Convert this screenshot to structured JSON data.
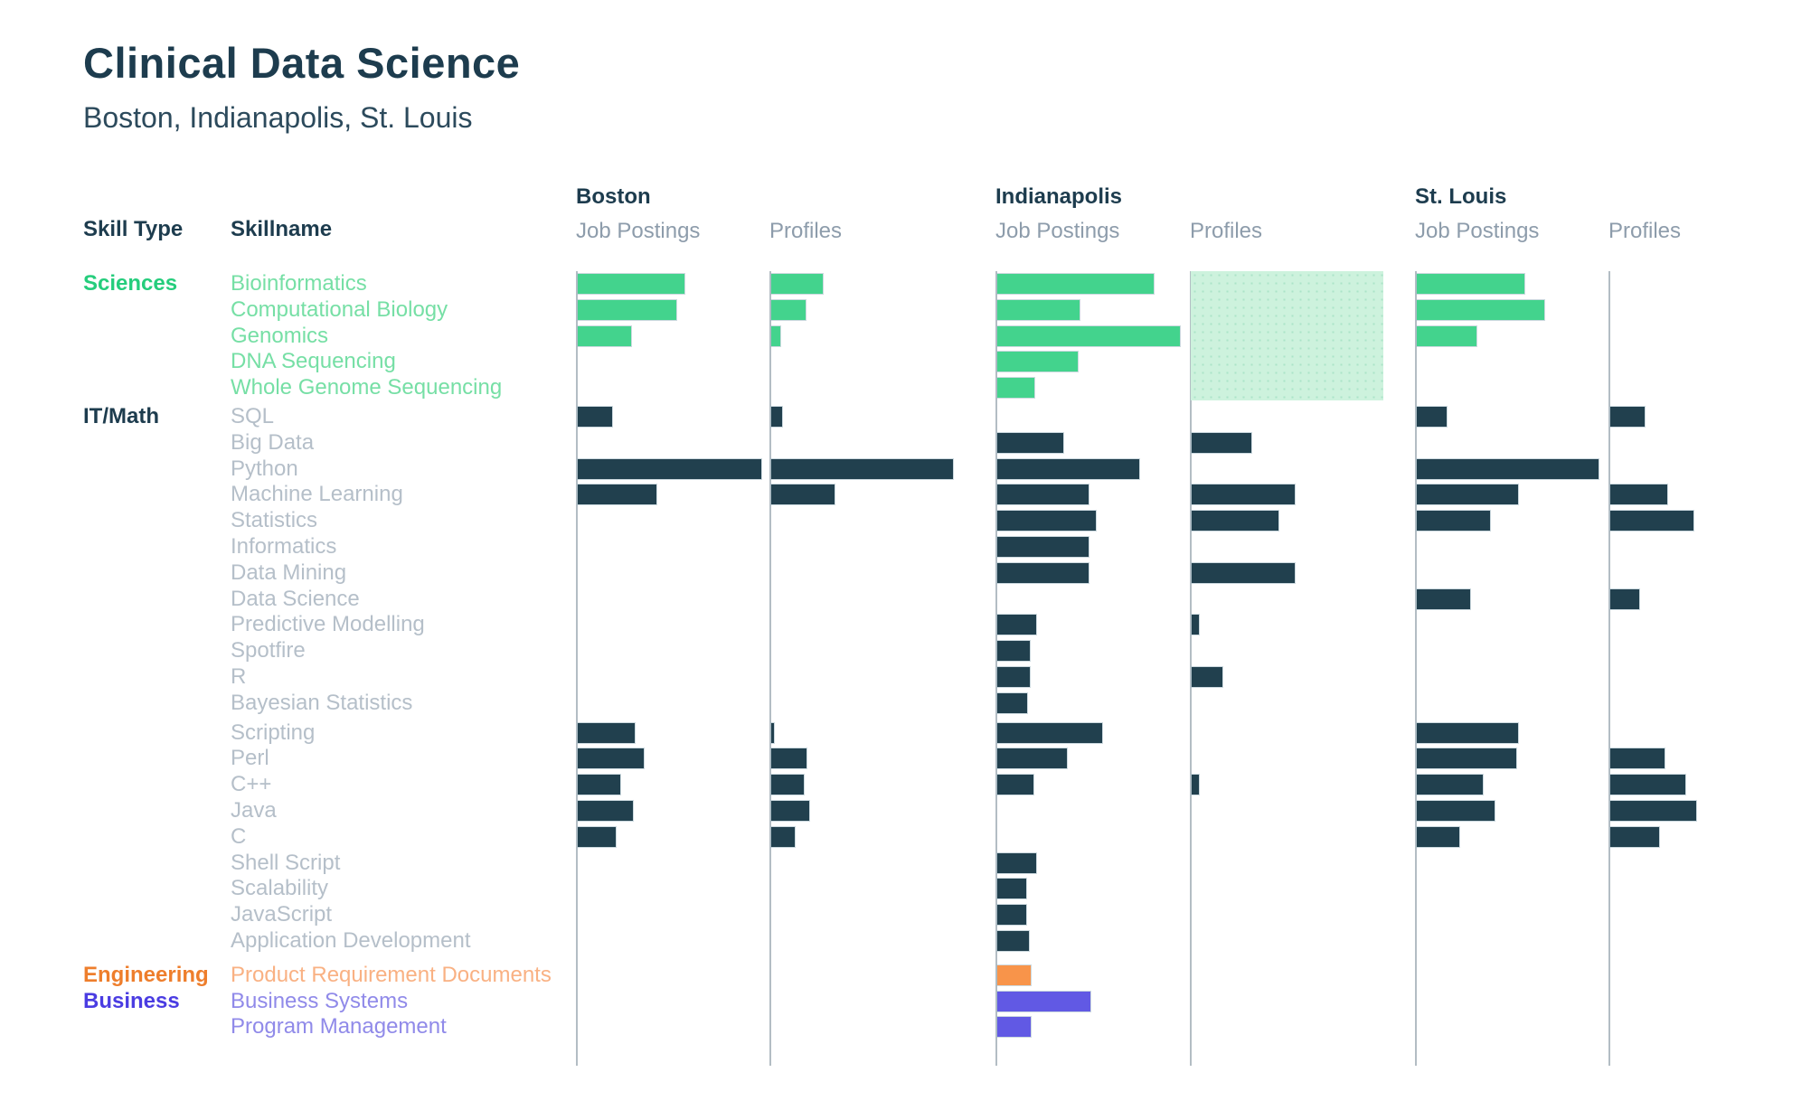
{
  "page": {
    "title": "Clinical Data Science",
    "subtitle": "Boston, Indianapolis, St. Louis"
  },
  "table": {
    "skill_type_header": "Skill Type",
    "skillname_header": "Skillname"
  },
  "cities": [
    "Boston",
    "Indianapolis",
    "St. Louis"
  ],
  "metric_labels": [
    "Job Postings",
    "Profiles"
  ],
  "groups": [
    {
      "id": "sciences",
      "label": "Sciences",
      "label_color": "#25cd7c",
      "text_color": "#76dfa5",
      "bar_color": "#43d38d"
    },
    {
      "id": "it",
      "label": "IT/Math",
      "label_color": "#1d3c4e",
      "text_color": "#b5bfc9",
      "bar_color": "#21404e"
    },
    {
      "id": "engineering",
      "label": "Engineering",
      "label_color": "#ee7e2c",
      "text_color": "#f9b183",
      "bar_color": "#f8944a"
    },
    {
      "id": "business",
      "label": "Business",
      "label_color": "#4a3ce2",
      "text_color": "#908ae9",
      "bar_color": "#6159e4"
    }
  ],
  "highlight_box": {
    "city": "Indianapolis",
    "metric": "Profiles",
    "first_skill": "Bioinformatics",
    "last_skill": "Whole Genome Sequencing",
    "color": "#cdf2dd"
  },
  "chart_data": {
    "type": "bar",
    "orientation": "horizontal",
    "value_unit": "bar length in source-screenshot pixels (chart shows no numeric axis)",
    "columns": [
      "Boston Job Postings",
      "Boston Profiles",
      "Indianapolis Job Postings",
      "Indianapolis Profiles",
      "St. Louis Job Postings",
      "St. Louis Profiles"
    ],
    "rows": [
      {
        "skill": "Bioinformatics",
        "group": "sciences",
        "break": "none",
        "values": [
          118,
          57,
          173,
          0,
          119,
          0
        ]
      },
      {
        "skill": "Computational Biology",
        "group": "sciences",
        "break": "none",
        "values": [
          109,
          38,
          91,
          0,
          141,
          0
        ]
      },
      {
        "skill": "Genomics",
        "group": "sciences",
        "break": "none",
        "values": [
          59,
          10,
          202,
          0,
          66,
          0
        ]
      },
      {
        "skill": "DNA Sequencing",
        "group": "sciences",
        "break": "none",
        "values": [
          0,
          0,
          89,
          0,
          0,
          0
        ]
      },
      {
        "skill": "Whole Genome Sequencing",
        "group": "sciences",
        "break": "none",
        "values": [
          0,
          0,
          41,
          0,
          0,
          0
        ]
      },
      {
        "skill": "SQL",
        "group": "it",
        "break": "small",
        "values": [
          38,
          12,
          0,
          0,
          33,
          38
        ]
      },
      {
        "skill": "Big Data",
        "group": "it",
        "break": "none",
        "values": [
          0,
          0,
          73,
          66,
          0,
          0
        ]
      },
      {
        "skill": "Python",
        "group": "it",
        "break": "none",
        "values": [
          203,
          201,
          157,
          0,
          201,
          0
        ]
      },
      {
        "skill": "Machine Learning",
        "group": "it",
        "break": "none",
        "values": [
          87,
          70,
          101,
          114,
          112,
          63
        ]
      },
      {
        "skill": "Statistics",
        "group": "it",
        "break": "none",
        "values": [
          0,
          0,
          109,
          96,
          81,
          92
        ]
      },
      {
        "skill": "Informatics",
        "group": "it",
        "break": "none",
        "values": [
          0,
          0,
          101,
          0,
          0,
          0
        ]
      },
      {
        "skill": "Data Mining",
        "group": "it",
        "break": "none",
        "values": [
          0,
          0,
          101,
          114,
          0,
          0
        ]
      },
      {
        "skill": "Data Science",
        "group": "it",
        "break": "none",
        "values": [
          0,
          0,
          0,
          0,
          59,
          32
        ]
      },
      {
        "skill": "Predictive Modelling",
        "group": "it",
        "break": "none",
        "values": [
          0,
          0,
          43,
          8,
          0,
          0
        ]
      },
      {
        "skill": "Spotfire",
        "group": "it",
        "break": "none",
        "values": [
          0,
          0,
          36,
          0,
          0,
          0
        ]
      },
      {
        "skill": "R",
        "group": "it",
        "break": "none",
        "values": [
          0,
          0,
          36,
          34,
          0,
          0
        ]
      },
      {
        "skill": "Bayesian Statistics",
        "group": "it",
        "break": "none",
        "values": [
          0,
          0,
          33,
          0,
          0,
          0
        ]
      },
      {
        "skill": "Scripting",
        "group": "it",
        "break": "medium",
        "values": [
          63,
          3,
          116,
          0,
          112,
          0
        ]
      },
      {
        "skill": "Perl",
        "group": "it",
        "break": "none",
        "values": [
          73,
          39,
          77,
          0,
          110,
          60
        ]
      },
      {
        "skill": "C++",
        "group": "it",
        "break": "none",
        "values": [
          47,
          36,
          40,
          8,
          73,
          83
        ]
      },
      {
        "skill": "Java",
        "group": "it",
        "break": "none",
        "values": [
          61,
          42,
          0,
          0,
          86,
          95
        ]
      },
      {
        "skill": "C",
        "group": "it",
        "break": "none",
        "values": [
          42,
          26,
          0,
          0,
          47,
          54
        ]
      },
      {
        "skill": "Shell Script",
        "group": "it",
        "break": "none",
        "values": [
          0,
          0,
          43,
          0,
          0,
          0
        ]
      },
      {
        "skill": "Scalability",
        "group": "it",
        "break": "none",
        "values": [
          0,
          0,
          32,
          0,
          0,
          0
        ]
      },
      {
        "skill": "JavaScript",
        "group": "it",
        "break": "none",
        "values": [
          0,
          0,
          32,
          0,
          0,
          0
        ]
      },
      {
        "skill": "Application Development",
        "group": "it",
        "break": "none",
        "values": [
          0,
          0,
          35,
          0,
          0,
          0
        ]
      },
      {
        "skill": "Product Requirement Documents",
        "group": "engineering",
        "break": "large",
        "values": [
          0,
          0,
          37,
          0,
          0,
          0
        ]
      },
      {
        "skill": "Business Systems",
        "group": "business",
        "break": "none",
        "values": [
          0,
          0,
          103,
          0,
          0,
          0
        ]
      },
      {
        "skill": "Program Management",
        "group": "business",
        "break": "none",
        "values": [
          0,
          0,
          37,
          0,
          0,
          0
        ]
      }
    ]
  }
}
